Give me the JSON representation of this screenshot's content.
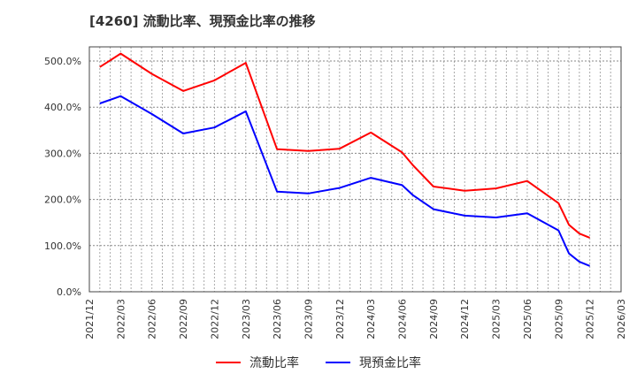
{
  "title": "[4260]  流動比率、現預金比率の推移",
  "colors": {
    "current_ratio": "#ff0000",
    "cash_ratio": "#0000ff",
    "grid": "#999999",
    "axis": "#333333"
  },
  "legend": [
    {
      "label": "流動比率",
      "color": "#ff0000"
    },
    {
      "label": "現預金比率",
      "color": "#0000ff"
    }
  ],
  "chart_data": {
    "type": "line",
    "title": "[4260]  流動比率、現預金比率の推移",
    "xlabel": "",
    "ylabel": "",
    "ylim": [
      0,
      530
    ],
    "y_ticks": [
      "0.0%",
      "100.0%",
      "200.0%",
      "300.0%",
      "400.0%",
      "500.0%"
    ],
    "x_ticks": [
      "2021/12",
      "2022/03",
      "2022/06",
      "2022/09",
      "2022/12",
      "2023/03",
      "2023/06",
      "2023/09",
      "2023/12",
      "2024/03",
      "2024/06",
      "2024/09",
      "2024/12",
      "2025/03",
      "2025/06",
      "2025/09",
      "2025/12",
      "2026/03"
    ],
    "grid": true,
    "legend_position": "bottom",
    "x": [
      "2022/01",
      "2022/03",
      "2022/06",
      "2022/09",
      "2022/12",
      "2023/03",
      "2023/06",
      "2023/09",
      "2023/12",
      "2024/03",
      "2024/06",
      "2024/07",
      "2024/09",
      "2024/12",
      "2025/03",
      "2025/06",
      "2025/09",
      "2025/10",
      "2025/11",
      "2025/12"
    ],
    "x_month_index": [
      1,
      3,
      6,
      9,
      12,
      15,
      18,
      21,
      24,
      27,
      30,
      31,
      33,
      36,
      39,
      42,
      45,
      46,
      47,
      48
    ],
    "series": [
      {
        "name": "流動比率",
        "color": "#ff0000",
        "values": [
          487,
          516,
          472,
          435,
          458,
          496,
          309,
          305,
          310,
          345,
          302,
          275,
          228,
          219,
          224,
          240,
          192,
          145,
          126,
          117
        ]
      },
      {
        "name": "現預金比率",
        "color": "#0000ff",
        "values": [
          408,
          424,
          385,
          343,
          356,
          391,
          217,
          213,
          225,
          247,
          231,
          210,
          179,
          165,
          161,
          170,
          133,
          83,
          65,
          56
        ]
      }
    ]
  }
}
